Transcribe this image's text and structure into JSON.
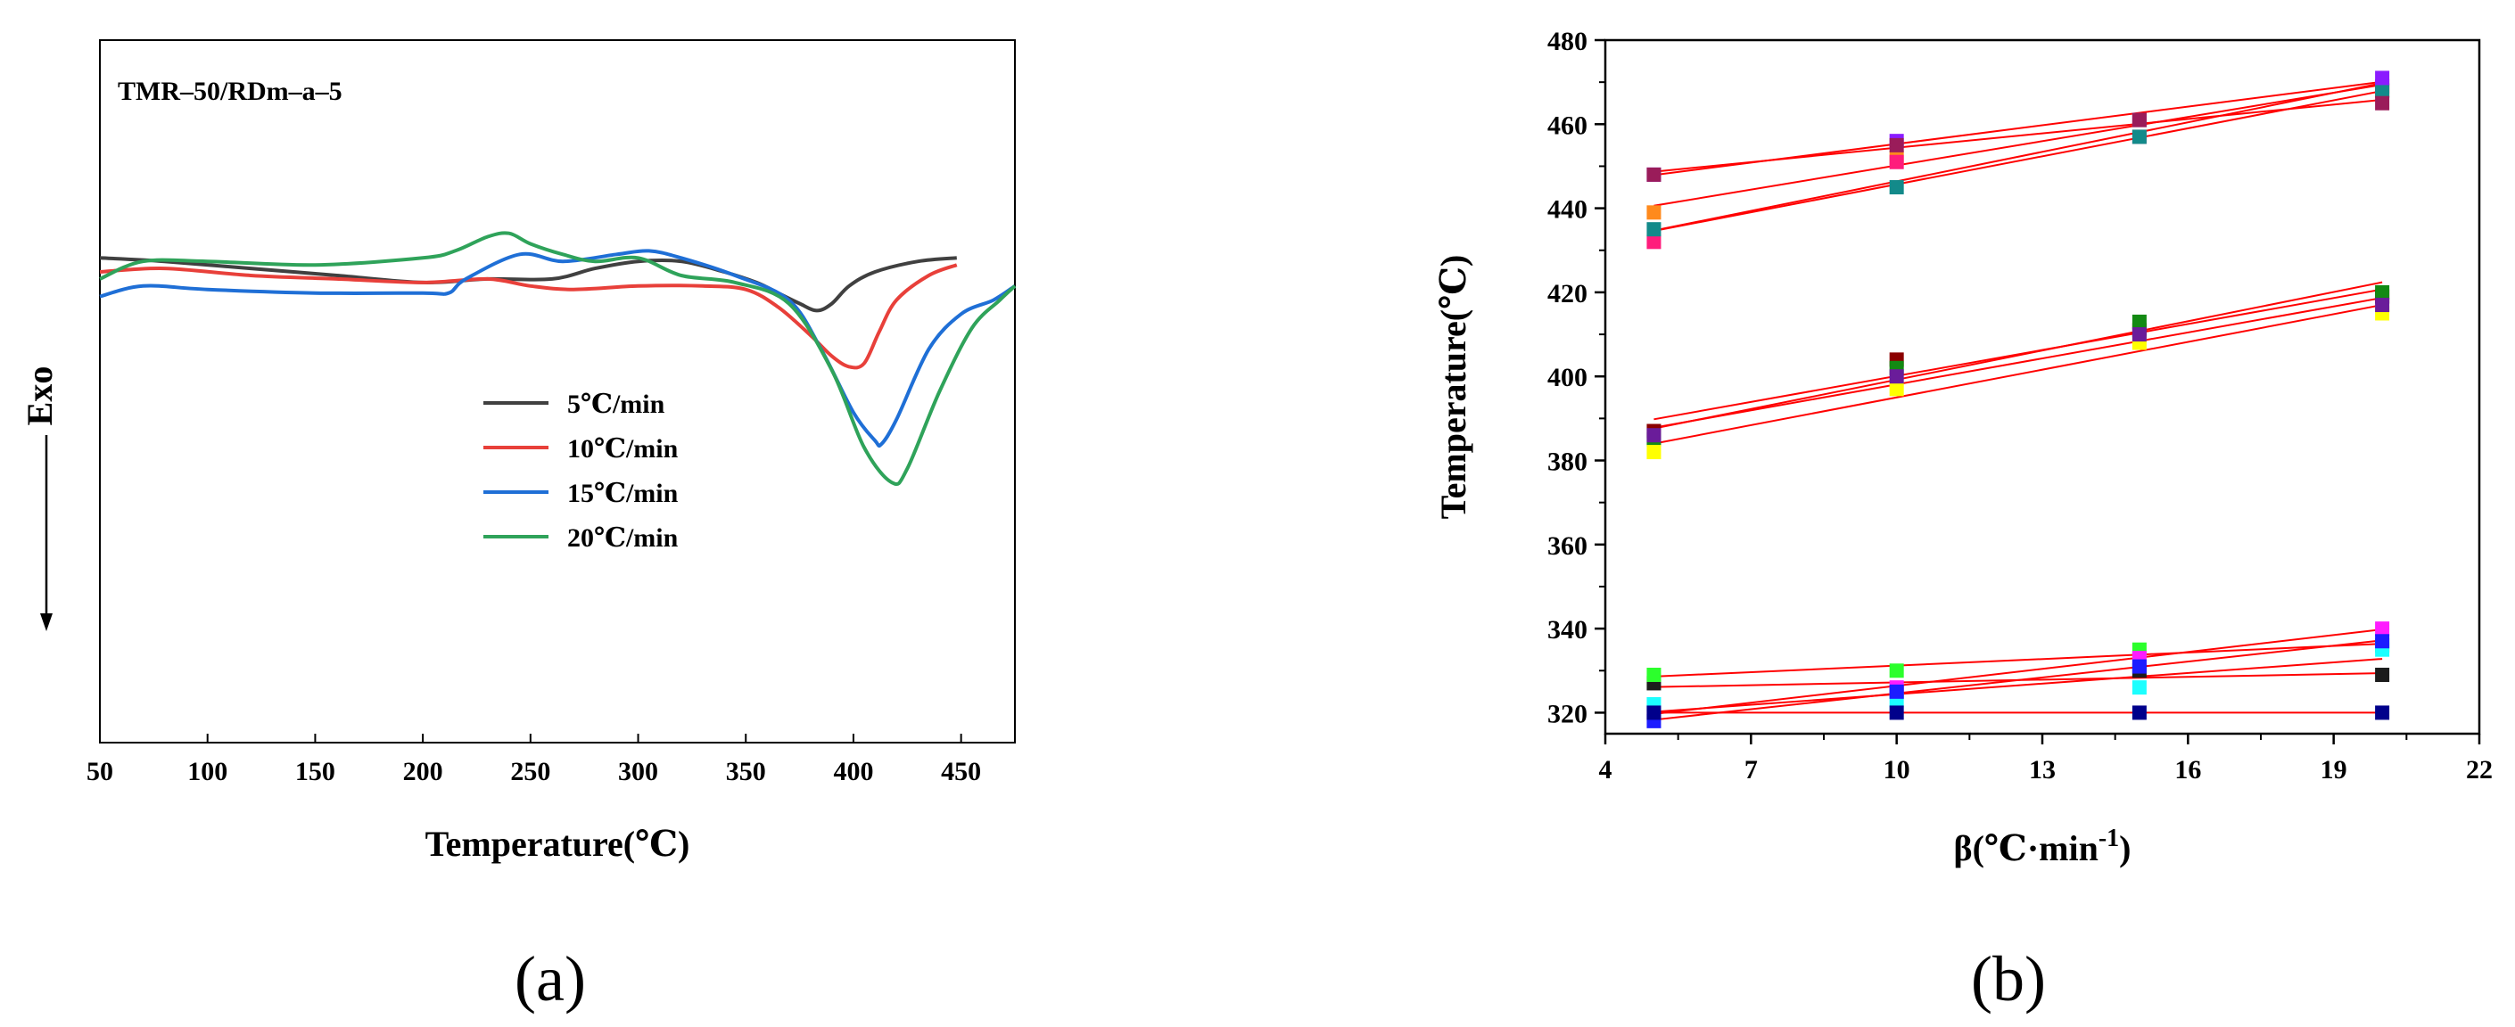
{
  "chart_data": [
    {
      "type": "line",
      "panel_label": "(a)",
      "annotation": "TMR–50/RDm–a–5",
      "xlabel": "Temperature(℃)",
      "ylabel": "Exo",
      "xlim": [
        50,
        475
      ],
      "ylim": [
        0,
        1
      ],
      "xticks": [
        "50",
        "100",
        "150",
        "200",
        "250",
        "300",
        "350",
        "400",
        "450"
      ],
      "legend_position": "center",
      "series": [
        {
          "name": "5℃/min",
          "color": "#404040",
          "x": [
            50,
            80,
            120,
            160,
            200,
            230,
            260,
            280,
            300,
            320,
            340,
            355,
            365,
            375,
            383,
            390,
            398,
            410,
            430,
            448
          ],
          "y": [
            0.69,
            0.685,
            0.675,
            0.665,
            0.655,
            0.66,
            0.66,
            0.675,
            0.685,
            0.685,
            0.67,
            0.655,
            0.64,
            0.625,
            0.615,
            0.625,
            0.65,
            0.67,
            0.685,
            0.69
          ]
        },
        {
          "name": "10℃/min",
          "color": "#e8403a",
          "x": [
            50,
            80,
            120,
            160,
            200,
            230,
            250,
            270,
            300,
            330,
            350,
            365,
            380,
            390,
            398,
            405,
            412,
            420,
            435,
            448
          ],
          "y": [
            0.67,
            0.675,
            0.665,
            0.66,
            0.655,
            0.66,
            0.65,
            0.645,
            0.65,
            0.65,
            0.645,
            0.62,
            0.58,
            0.55,
            0.535,
            0.54,
            0.585,
            0.63,
            0.665,
            0.68
          ]
        },
        {
          "name": "15℃/min",
          "color": "#1f6fd6",
          "x": [
            50,
            70,
            100,
            150,
            200,
            212,
            220,
            245,
            265,
            290,
            305,
            320,
            345,
            370,
            385,
            400,
            410,
            413,
            420,
            435,
            450,
            465,
            475
          ],
          "y": [
            0.635,
            0.65,
            0.645,
            0.64,
            0.64,
            0.64,
            0.66,
            0.695,
            0.685,
            0.695,
            0.7,
            0.69,
            0.665,
            0.63,
            0.56,
            0.47,
            0.43,
            0.425,
            0.46,
            0.56,
            0.61,
            0.63,
            0.65
          ]
        },
        {
          "name": "20℃/min",
          "color": "#2fa35a",
          "x": [
            50,
            70,
            100,
            150,
            200,
            215,
            230,
            240,
            250,
            265,
            280,
            300,
            320,
            345,
            370,
            390,
            405,
            418,
            425,
            440,
            455,
            468,
            475
          ],
          "y": [
            0.66,
            0.685,
            0.685,
            0.68,
            0.69,
            0.7,
            0.72,
            0.725,
            0.71,
            0.695,
            0.685,
            0.69,
            0.665,
            0.655,
            0.625,
            0.53,
            0.42,
            0.37,
            0.39,
            0.5,
            0.59,
            0.63,
            0.65
          ]
        }
      ]
    },
    {
      "type": "scatter",
      "panel_label": "(b)",
      "xlabel": "β(℃·min",
      "xlabel_sup": "-1",
      "xlabel_close": ")",
      "ylabel": "Temperature(℃)",
      "xlim": [
        4,
        22
      ],
      "ylim": [
        315,
        480
      ],
      "xticks": [
        "4",
        "7",
        "10",
        "13",
        "16",
        "19",
        "22"
      ],
      "yticks": [
        "320",
        "340",
        "360",
        "380",
        "400",
        "420",
        "440",
        "460",
        "480"
      ],
      "fit_line_color": "#ff0000",
      "x": [
        5,
        10,
        15,
        20
      ],
      "series": [
        {
          "color": "#ff8a1c",
          "values": [
            439,
            452,
            461,
            468
          ]
        },
        {
          "color": "#ff1c7c",
          "values": [
            432,
            451,
            457,
            469
          ]
        },
        {
          "color": "#138a8a",
          "values": [
            435,
            445,
            457,
            468
          ]
        },
        {
          "color": "#8b1cff",
          "values": [
            448,
            456,
            461,
            471
          ]
        },
        {
          "color": "#9a1c5a",
          "values": [
            448,
            455,
            461,
            465
          ]
        },
        {
          "color": "#8b0000",
          "values": [
            387,
            404,
            411,
            419
          ]
        },
        {
          "color": "#138a13",
          "values": [
            385,
            402,
            413,
            420
          ]
        },
        {
          "color": "#ffff00",
          "values": [
            382,
            397,
            408,
            415
          ]
        },
        {
          "color": "#6a1c9a",
          "values": [
            386,
            400,
            410,
            417
          ]
        },
        {
          "color": "#1c1c1c",
          "values": [
            327,
            325,
            330,
            329
          ]
        },
        {
          "color": "#2cff2c",
          "values": [
            329,
            330,
            335,
            336
          ]
        },
        {
          "color": "#ff1cff",
          "values": [
            320,
            326,
            333,
            340
          ]
        },
        {
          "color": "#1cffff",
          "values": [
            322,
            323,
            326,
            335
          ]
        },
        {
          "color": "#1c1cff",
          "values": [
            318,
            325,
            331,
            337
          ]
        },
        {
          "color": "#00008b",
          "values": [
            320,
            320,
            320,
            320
          ]
        }
      ]
    }
  ]
}
